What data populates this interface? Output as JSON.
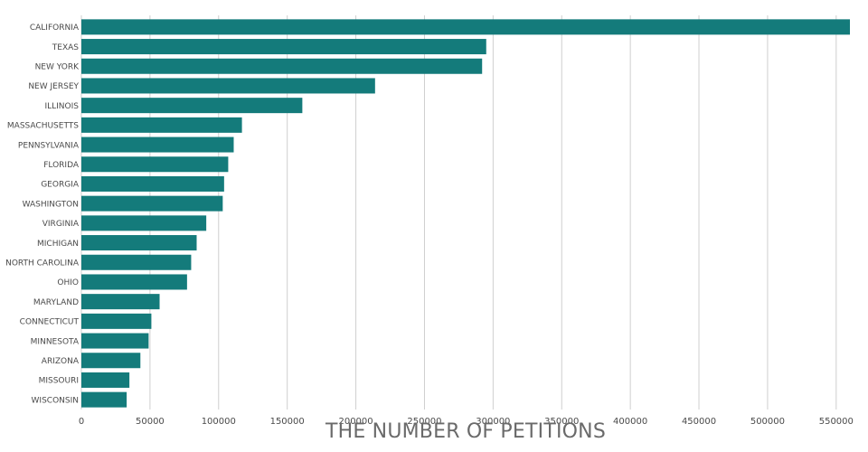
{
  "chart_data": {
    "type": "bar",
    "orientation": "horizontal",
    "categories": [
      "CALIFORNIA",
      "TEXAS",
      "NEW YORK",
      "NEW JERSEY",
      "ILLINOIS",
      "MASSACHUSETTS",
      "PENNSYLVANIA",
      "FLORIDA",
      "GEORGIA",
      "WASHINGTON",
      "VIRGINIA",
      "MICHIGAN",
      "NORTH CAROLINA",
      "OHIO",
      "MARYLAND",
      "CONNECTICUT",
      "MINNESOTA",
      "ARIZONA",
      "MISSOURI",
      "WISCONSIN"
    ],
    "values": [
      560000,
      295000,
      292000,
      214000,
      161000,
      117000,
      111000,
      107000,
      104000,
      103000,
      91000,
      84000,
      80000,
      77000,
      57000,
      51000,
      49000,
      43000,
      35000,
      33000
    ],
    "xlabel": "THE NUMBER OF PETITIONS",
    "xlim": [
      0,
      560000
    ],
    "xticks": [
      0,
      50000,
      100000,
      150000,
      200000,
      250000,
      300000,
      350000,
      400000,
      450000,
      500000,
      550000
    ],
    "grid": "vertical",
    "bar_color": "#147b7b",
    "grid_color": "#cfcfcf"
  }
}
